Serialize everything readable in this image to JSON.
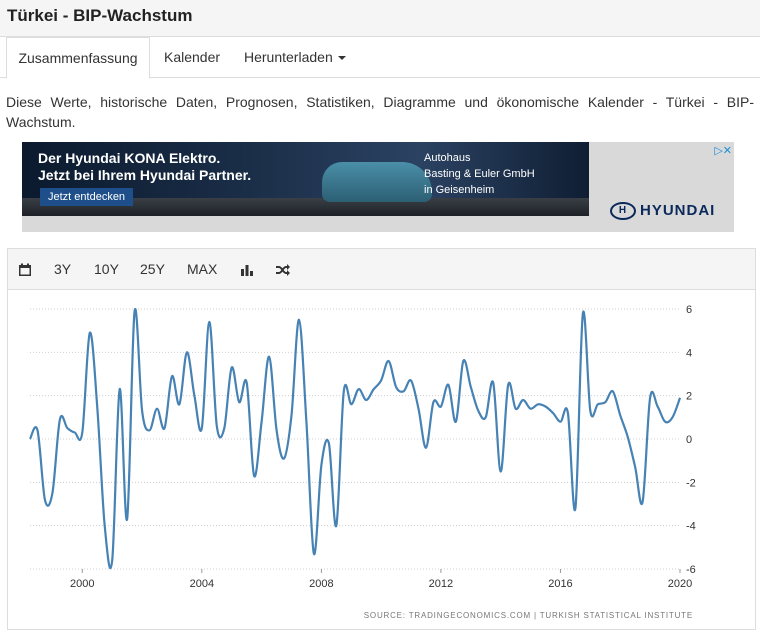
{
  "page": {
    "title": "Türkei - BIP-Wachstum"
  },
  "tabs": [
    {
      "label": "Zusammenfassung"
    },
    {
      "label": "Kalender"
    },
    {
      "label": "Herunterladen"
    }
  ],
  "description": "Diese Werte, historische Daten, Prognosen, Statistiken, Diagramme und ökonomische Kalender - Türkei - BIP-Wachstum.",
  "ad": {
    "headline_1": "Der Hyundai KONA Elektro.",
    "headline_2": "Jetzt bei Ihrem Hyundai Partner.",
    "button": "Jetzt entdecken",
    "dealer_1": "Autohaus",
    "dealer_2": "Basting & Euler GmbH",
    "dealer_3": "in Geisenheim",
    "logo": "HYUNDAI",
    "choices_icon": "ad-choices-icon"
  },
  "toolbar": {
    "calendar_icon": "calendar-icon",
    "ranges": [
      "3Y",
      "10Y",
      "25Y",
      "MAX"
    ],
    "bar_chart_icon": "bar-chart-icon",
    "shuffle_icon": "shuffle-icon"
  },
  "chart_data": {
    "type": "line",
    "title": "",
    "xlabel": "",
    "ylabel": "",
    "xlim": [
      1998.25,
      2020.0
    ],
    "ylim": [
      -6,
      6
    ],
    "x_ticks": [
      "2000",
      "2004",
      "2008",
      "2012",
      "2016",
      "2020"
    ],
    "y_ticks": [
      "6",
      "4",
      "2",
      "0",
      "-2",
      "-4",
      "-6"
    ],
    "line_color": "#4682b4",
    "grid": true,
    "source": "SOURCE: TRADINGECONOMICS.COM  |  TURKISH STATISTICAL INSTITUTE",
    "series": [
      {
        "x": [
          1998.25,
          1998.5,
          1998.75,
          1999.0,
          1999.25,
          1999.5,
          1999.75,
          2000.0,
          2000.25,
          2000.5,
          2000.75,
          2001.0,
          2001.25,
          2001.5,
          2001.75,
          2002.0,
          2002.25,
          2002.5,
          2002.75,
          2003.0,
          2003.25,
          2003.5,
          2003.75,
          2004.0,
          2004.25,
          2004.5,
          2004.75,
          2005.0,
          2005.25,
          2005.5,
          2005.75,
          2006.0,
          2006.25,
          2006.5,
          2006.75,
          2007.0,
          2007.25,
          2007.5,
          2007.75,
          2008.0,
          2008.25,
          2008.5,
          2008.75,
          2009.0,
          2009.25,
          2009.5,
          2009.75,
          2010.0,
          2010.25,
          2010.5,
          2010.75,
          2011.0,
          2011.25,
          2011.5,
          2011.75,
          2012.0,
          2012.25,
          2012.5,
          2012.75,
          2013.0,
          2013.25,
          2013.5,
          2013.75,
          2014.0,
          2014.25,
          2014.5,
          2014.75,
          2015.0,
          2015.25,
          2015.5,
          2015.75,
          2016.0,
          2016.25,
          2016.5,
          2016.75,
          2017.0,
          2017.25,
          2017.5,
          2017.75,
          2018.0,
          2018.25,
          2018.5,
          2018.75,
          2019.0,
          2019.25,
          2019.5,
          2019.75,
          2020.0
        ],
        "y": [
          0.0,
          0.4,
          -2.8,
          -2.5,
          0.9,
          0.5,
          0.3,
          0.3,
          4.9,
          1.5,
          -4.0,
          -5.6,
          2.3,
          -3.7,
          5.9,
          1.3,
          0.4,
          1.4,
          0.5,
          2.9,
          1.6,
          4.0,
          2.0,
          0.5,
          5.4,
          0.6,
          0.5,
          3.3,
          1.7,
          2.6,
          -1.7,
          0.8,
          3.8,
          0.4,
          -0.9,
          1.1,
          5.5,
          0.8,
          -5.3,
          -1.2,
          -0.2,
          -4.0,
          2.2,
          1.6,
          2.3,
          1.8,
          2.3,
          2.7,
          3.6,
          2.4,
          2.2,
          2.7,
          1.4,
          -0.4,
          1.7,
          1.5,
          2.5,
          0.8,
          3.6,
          2.4,
          1.3,
          1.0,
          2.6,
          -1.5,
          2.5,
          1.4,
          1.8,
          1.4,
          1.6,
          1.5,
          1.2,
          0.8,
          1.2,
          -3.2,
          5.8,
          1.3,
          1.6,
          1.7,
          2.2,
          1.1,
          0.1,
          -1.3,
          -2.9,
          1.9,
          1.5,
          0.8,
          1.0,
          1.9
        ]
      }
    ]
  }
}
